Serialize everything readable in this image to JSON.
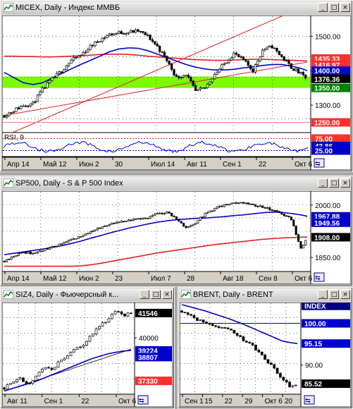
{
  "windows": [
    {
      "id": "micex",
      "title": "MICEX, Daily - Индекс ММВБ",
      "buttons": [
        "_",
        "□",
        "×"
      ],
      "y_ticks": [
        {
          "label": "1500.00",
          "value": 1500
        },
        {
          "label": "1400.00",
          "value": 1400
        },
        {
          "label": "1300.00",
          "value": 1300
        }
      ],
      "price_labels": [
        {
          "label": "1435.33",
          "value": 1435.33,
          "color": "#ff3030"
        },
        {
          "label": "1416.97",
          "value": 1416.97,
          "color": "#ff3030"
        },
        {
          "label": "1400.00",
          "value": 1400,
          "color": "#0000cc"
        },
        {
          "label": "1376.36",
          "value": 1376.36,
          "color": "#000000"
        },
        {
          "label": "1350.00",
          "value": 1350,
          "color": "#008000"
        },
        {
          "label": "1250.00",
          "value": 1250,
          "color": "#ff3030"
        }
      ],
      "x_labels": [
        "Апр 14",
        "Май 12",
        "Июн 2",
        "30",
        "Июл 14",
        "Авг 11",
        "Сен 1",
        "22",
        "Окт 6"
      ],
      "ylim": [
        1200,
        1560
      ],
      "band": [
        1350,
        1383
      ],
      "rsi": {
        "label": "RSI, 9",
        "levels": [
          {
            "label": "75.00",
            "value": 75,
            "color": "#ff3030"
          },
          {
            "label": "43.86",
            "value": 43.86,
            "color": "#0000cc"
          },
          {
            "label": "25.00",
            "value": 25,
            "color": "#0000cc"
          }
        ]
      }
    },
    {
      "id": "sp500",
      "title": "SP500, Daily - S & P 500 Index",
      "buttons": [
        "_",
        "□",
        "×"
      ],
      "y_ticks": [
        {
          "label": "2000.00",
          "value": 2000
        },
        {
          "label": "1850.00",
          "value": 1850
        }
      ],
      "price_labels": [
        {
          "label": "1967.88",
          "value": 1967.88,
          "color": "#0000cc"
        },
        {
          "label": "1949.56",
          "value": 1949.56,
          "color": "#0000cc"
        },
        {
          "label": "1908.00",
          "value": 1908,
          "color": "#000000"
        }
      ],
      "x_labels": [
        "Апр 14",
        "Май 12",
        "Июн 2",
        "23",
        "Июл 7",
        "28",
        "Авг 18",
        "Сен 8",
        "Окт 6"
      ],
      "ylim": [
        1810,
        2040
      ]
    },
    {
      "id": "siz4",
      "title": "SIZ4, Daily - Фьючерсный к...",
      "buttons": [
        "_",
        "□",
        "×"
      ],
      "y_ticks": [
        {
          "label": "40000",
          "value": 40000
        }
      ],
      "price_labels": [
        {
          "label": "41546",
          "value": 41546,
          "color": "#000000"
        },
        {
          "label": "39224",
          "value": 39224,
          "color": "#0000cc"
        },
        {
          "label": "38807",
          "value": 38807,
          "color": "#0000cc"
        },
        {
          "label": "37330",
          "value": 37330,
          "color": "#ff3030"
        }
      ],
      "x_labels": [
        "Авг 11",
        "Сен 1",
        "22",
        "Окт 6"
      ],
      "ylim": [
        36500,
        42200
      ]
    },
    {
      "id": "brent",
      "title": "BRENT, Daily - BRENT",
      "buttons": [
        "_",
        "□",
        "×"
      ],
      "y_ticks": [
        {
          "label": "90.00",
          "value": 90
        }
      ],
      "price_labels": [
        {
          "label": "INDEX",
          "value": 104.2,
          "color": "#000080"
        },
        {
          "label": "100.00",
          "value": 100,
          "color": "#0000cc"
        },
        {
          "label": "95.15",
          "value": 95.15,
          "color": "#0000cc"
        },
        {
          "label": "85.52",
          "value": 85.52,
          "color": "#000000"
        }
      ],
      "x_labels": [
        "Сен 1",
        "15",
        "22",
        "29",
        "Окт 6",
        "20"
      ],
      "ylim": [
        83,
        105
      ]
    }
  ],
  "chart_data": [
    {
      "type": "candlestick",
      "title": "MICEX, Daily - Индекс ММВБ",
      "x_labels": [
        "Апр 14",
        "Май 12",
        "Июн 2",
        "30",
        "Июл 14",
        "Авг 11",
        "Сен 1",
        "22",
        "Окт 6"
      ],
      "x": [
        0,
        6,
        12,
        18,
        24,
        30,
        36,
        42,
        48,
        54,
        60,
        66,
        72,
        78,
        84,
        90,
        96,
        102,
        108,
        114,
        120,
        126,
        132,
        138,
        144,
        150,
        156,
        162,
        168,
        174,
        180,
        186,
        190
      ],
      "close": [
        1270,
        1285,
        1300,
        1305,
        1345,
        1375,
        1400,
        1430,
        1445,
        1470,
        1490,
        1505,
        1510,
        1512,
        1515,
        1500,
        1470,
        1430,
        1380,
        1390,
        1340,
        1350,
        1390,
        1420,
        1450,
        1430,
        1400,
        1460,
        1470,
        1440,
        1410,
        1390,
        1376
      ],
      "series": [
        {
          "name": "MA long",
          "color": "#e02020",
          "values": [
            1442,
            1442,
            1441,
            1441,
            1440,
            1440,
            1441,
            1442,
            1443,
            1445,
            1447,
            1448,
            1448,
            1447,
            1445,
            1442,
            1440,
            1438,
            1436,
            1434,
            1432,
            1431,
            1430,
            1430,
            1431,
            1432,
            1433,
            1433,
            1432,
            1431,
            1430,
            1429,
            1428
          ]
        },
        {
          "name": "MA mid",
          "color": "#0000cc",
          "values": [
            1395,
            1380,
            1365,
            1360,
            1365,
            1378,
            1392,
            1405,
            1418,
            1430,
            1442,
            1455,
            1463,
            1466,
            1465,
            1458,
            1448,
            1438,
            1428,
            1418,
            1410,
            1405,
            1402,
            1402,
            1404,
            1408,
            1411,
            1415,
            1418,
            1418,
            1413,
            1407,
            1400
          ]
        }
      ],
      "ylim": [
        1200,
        1560
      ]
    },
    {
      "type": "candlestick",
      "title": "SP500, Daily - S & P 500 Index",
      "x_labels": [
        "Апр 14",
        "Май 12",
        "Июн 2",
        "23",
        "Июл 7",
        "28",
        "Авг 18",
        "Сен 8",
        "Окт 6"
      ],
      "x": [
        0,
        6,
        12,
        18,
        24,
        30,
        36,
        42,
        48,
        54,
        60,
        66,
        72,
        78,
        84,
        90,
        96,
        102,
        108,
        114,
        120,
        126,
        132,
        138,
        144,
        150,
        156,
        162,
        168,
        174,
        180,
        186,
        190
      ],
      "close": [
        1840,
        1855,
        1865,
        1862,
        1870,
        1880,
        1890,
        1900,
        1910,
        1925,
        1935,
        1945,
        1950,
        1955,
        1960,
        1965,
        1975,
        1980,
        1960,
        1935,
        1950,
        1975,
        1990,
        2000,
        2005,
        2008,
        2000,
        1995,
        1985,
        1975,
        1960,
        1875,
        1908
      ],
      "series": [
        {
          "name": "MA mid",
          "color": "#0000cc",
          "values": [
            1858,
            1862,
            1866,
            1870,
            1874,
            1879,
            1884,
            1890,
            1897,
            1905,
            1912,
            1920,
            1927,
            1934,
            1940,
            1946,
            1951,
            1955,
            1958,
            1960,
            1962,
            1963,
            1965,
            1967,
            1970,
            1972,
            1975,
            1978,
            1980,
            1979,
            1976,
            1972,
            1968
          ]
        },
        {
          "name": "MA long",
          "color": "#e02020",
          "values": [
            1825,
            1825,
            1825,
            1825,
            1825,
            1825,
            1825,
            1825,
            1826,
            1829,
            1833,
            1838,
            1843,
            1848,
            1853,
            1858,
            1863,
            1867,
            1871,
            1875,
            1879,
            1883,
            1887,
            1890,
            1893,
            1896,
            1899,
            1902,
            1904,
            1906,
            1907,
            1908,
            1909
          ]
        }
      ],
      "ylim": [
        1810,
        2040
      ]
    },
    {
      "type": "candlestick",
      "title": "SIZ4, Daily - Фьючерсный к...",
      "x_labels": [
        "Авг 11",
        "Сен 1",
        "22",
        "Окт 6"
      ],
      "x": [
        0,
        5,
        10,
        15,
        20,
        25,
        30,
        35,
        40,
        45,
        50,
        55,
        60,
        65,
        70,
        75,
        80
      ],
      "close": [
        36900,
        37200,
        37500,
        37100,
        37600,
        38200,
        38000,
        38600,
        38900,
        39300,
        39600,
        40200,
        40700,
        41100,
        41700,
        41400,
        41546
      ],
      "series": [
        {
          "name": "MA mid",
          "color": "#0000cc",
          "values": [
            36700,
            36850,
            37000,
            37150,
            37300,
            37500,
            37700,
            37900,
            38100,
            38300,
            38500,
            38700,
            38850,
            39000,
            39100,
            39180,
            39224
          ]
        }
      ],
      "ylim": [
        36500,
        42200
      ]
    },
    {
      "type": "candlestick",
      "title": "BRENT, Daily - BRENT",
      "x_labels": [
        "Сен 1",
        "15",
        "22",
        "29",
        "Окт 6",
        "20"
      ],
      "x": [
        0,
        5,
        10,
        15,
        20,
        25,
        30,
        35,
        40,
        45,
        50,
        55,
        60,
        65,
        70,
        75
      ],
      "close": [
        103,
        102,
        101,
        100.5,
        99.5,
        99,
        98.5,
        97.5,
        96,
        95,
        93,
        91,
        89,
        87,
        85,
        85.52
      ],
      "series": [
        {
          "name": "MA mid",
          "color": "#0000cc",
          "values": [
            104.5,
            104,
            103.5,
            103,
            102.4,
            101.8,
            101.2,
            100.5,
            99.8,
            99,
            98.2,
            97.4,
            96.6,
            95.8,
            95.4,
            95.15
          ]
        }
      ],
      "ylim": [
        83,
        105
      ]
    }
  ]
}
